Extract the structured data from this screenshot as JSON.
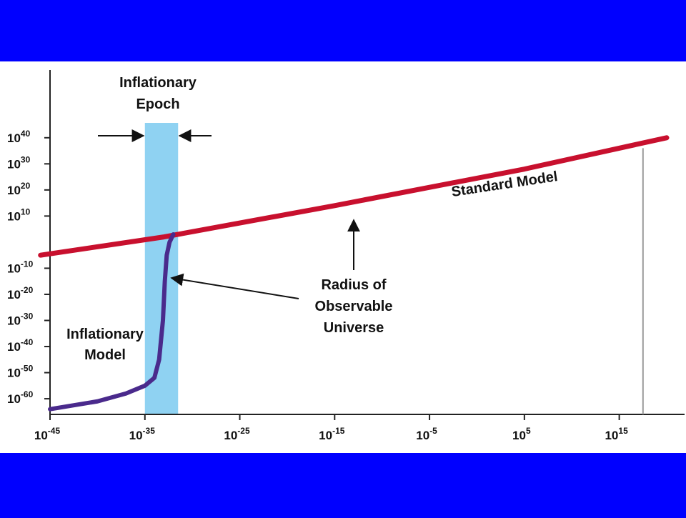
{
  "colors": {
    "frame": "#0000ff",
    "panel": "#ffffff",
    "epoch_band": "#8fd2f2",
    "standard_model": "#c8102e",
    "inflationary_model": "#4a2a8c",
    "axis": "#222222",
    "marker_line": "#9a9a9a"
  },
  "chart_data": {
    "type": "line",
    "x_scale": "log",
    "y_scale": "log",
    "x_ticks": [
      {
        "base": "10",
        "exp": "-45",
        "value": -45
      },
      {
        "base": "10",
        "exp": "-35",
        "value": -35
      },
      {
        "base": "10",
        "exp": "-25",
        "value": -25
      },
      {
        "base": "10",
        "exp": "-15",
        "value": -15
      },
      {
        "base": "10",
        "exp": "-5",
        "value": -5
      },
      {
        "base": "10",
        "exp": "5",
        "value": 5
      },
      {
        "base": "10",
        "exp": "15",
        "value": 15
      }
    ],
    "y_ticks": [
      {
        "base": "10",
        "exp": "40",
        "value": 40
      },
      {
        "base": "10",
        "exp": "30",
        "value": 30
      },
      {
        "base": "10",
        "exp": "20",
        "value": 20
      },
      {
        "base": "10",
        "exp": "10",
        "value": 10
      },
      {
        "base": "10",
        "exp": "-10",
        "value": -10
      },
      {
        "base": "10",
        "exp": "-20",
        "value": -20
      },
      {
        "base": "10",
        "exp": "-30",
        "value": -30
      },
      {
        "base": "10",
        "exp": "-40",
        "value": -40
      },
      {
        "base": "10",
        "exp": "-50",
        "value": -50
      },
      {
        "base": "10",
        "exp": "-60",
        "value": -60
      }
    ],
    "xlim": [
      -45,
      20
    ],
    "ylim": [
      -66,
      55
    ],
    "epoch_band": {
      "x_start": -35,
      "x_end": -31.5
    },
    "series": [
      {
        "name": "Standard Model",
        "color": "#c8102e",
        "points": [
          [
            -46,
            -5
          ],
          [
            -33,
            2
          ],
          [
            -15,
            14
          ],
          [
            5,
            28
          ],
          [
            20,
            40
          ]
        ]
      },
      {
        "name": "Inflationary Model",
        "color": "#4a2a8c",
        "points": [
          [
            -45,
            -64
          ],
          [
            -40,
            -61
          ],
          [
            -37,
            -58
          ],
          [
            -35,
            -55
          ],
          [
            -34,
            -52
          ],
          [
            -33.5,
            -45
          ],
          [
            -33.1,
            -30
          ],
          [
            -32.9,
            -15
          ],
          [
            -32.7,
            -5
          ],
          [
            -32.4,
            0
          ],
          [
            -32,
            3
          ]
        ]
      }
    ],
    "vertical_marker": {
      "x": 17.5,
      "y_top": 36
    },
    "annotations": {
      "epoch_label_line1": "Inflationary",
      "epoch_label_line2": "Epoch",
      "standard_label": "Standard Model",
      "inflation_label_line1": "Inflationary",
      "inflation_label_line2": "Model",
      "radius_line1": "Radius of",
      "radius_line2": "Observable",
      "radius_line3": "Universe"
    }
  }
}
